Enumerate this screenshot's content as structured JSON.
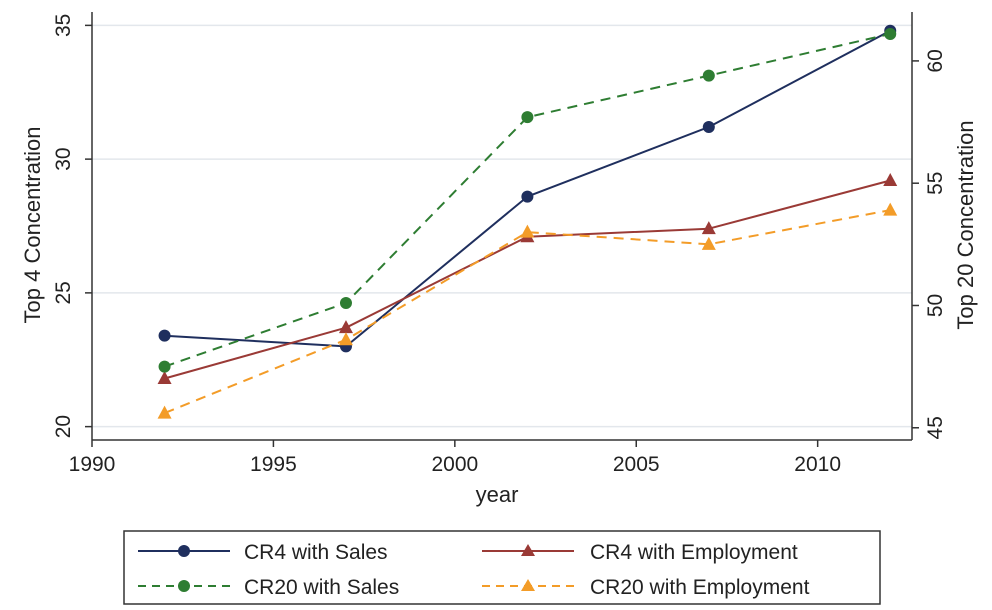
{
  "chart_data": {
    "type": "line",
    "title": "",
    "xlabel": "year",
    "ylabel_left": "Top 4 Concentration",
    "ylabel_right": "Top 20 Concentration",
    "xlim": [
      1990,
      2012.6
    ],
    "ylim_left": [
      19.5,
      35.5
    ],
    "ylim_right": [
      44.5,
      62
    ],
    "x_ticks": [
      1990,
      1995,
      2000,
      2005,
      2010
    ],
    "y_ticks_left": [
      20,
      25,
      30,
      35
    ],
    "y_ticks_right": [
      45,
      50,
      55,
      60
    ],
    "grid": true,
    "legend_position": "bottom",
    "x": [
      1992,
      1997,
      2002,
      2007,
      2012
    ],
    "series": [
      {
        "name": "CR4 with Sales",
        "axis": "left",
        "values": [
          23.4,
          23.0,
          28.6,
          31.2,
          34.8
        ],
        "color": "#1f2f5e",
        "dash": "solid",
        "marker": "circle"
      },
      {
        "name": "CR4 with Employment",
        "axis": "left",
        "values": [
          21.8,
          23.7,
          27.1,
          27.4,
          29.2
        ],
        "color": "#9a3a36",
        "dash": "solid",
        "marker": "triangle"
      },
      {
        "name": "CR20 with Sales",
        "axis": "right",
        "values": [
          47.5,
          50.1,
          57.7,
          59.4,
          61.1
        ],
        "color": "#2e7d32",
        "dash": "dashed",
        "marker": "circle"
      },
      {
        "name": "CR20 with Employment",
        "axis": "right",
        "values": [
          45.6,
          48.6,
          53.0,
          52.5,
          53.9
        ],
        "color": "#f39c28",
        "dash": "dashed",
        "marker": "triangle"
      }
    ]
  },
  "legend": {
    "items": [
      {
        "label": "CR4 with Sales"
      },
      {
        "label": "CR4 with Employment"
      },
      {
        "label": "CR20 with Sales"
      },
      {
        "label": "CR20 with Employment"
      }
    ]
  }
}
